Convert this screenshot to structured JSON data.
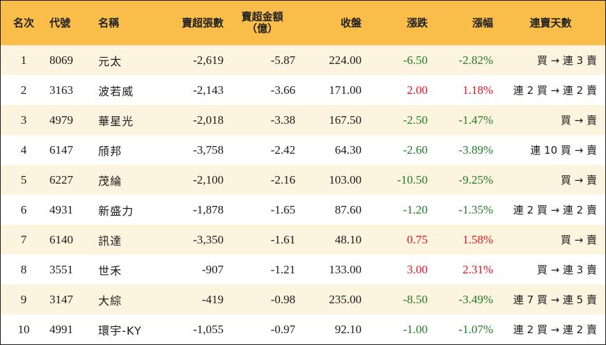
{
  "headers": {
    "rank": "名次",
    "code": "代號",
    "name": "名稱",
    "net_sell_lots": "賣超張數",
    "net_sell_amount_line1": "賣超金額",
    "net_sell_amount_line2": "（億）",
    "close": "收盤",
    "change": "漲跌",
    "change_pct": "漲幅",
    "streak": "連賣天數"
  },
  "colors": {
    "header_bg": "#f9bd4a",
    "odd_row_bg": "#fdf4df",
    "up": "#e8101e",
    "down": "#1c7d24"
  },
  "rows": [
    {
      "rank": "1",
      "code": "8069",
      "name": "元太",
      "lots": "-2,619",
      "amount": "-5.87",
      "close": "224.00",
      "change": "-6.50",
      "pct": "-2.82%",
      "dir": "down",
      "streak": "買 → 連 3 賣"
    },
    {
      "rank": "2",
      "code": "3163",
      "name": "波若威",
      "lots": "-2,143",
      "amount": "-3.66",
      "close": "171.00",
      "change": "2.00",
      "pct": "1.18%",
      "dir": "up",
      "streak": "連 2 買 → 連 2 賣"
    },
    {
      "rank": "3",
      "code": "4979",
      "name": "華星光",
      "lots": "-2,018",
      "amount": "-3.38",
      "close": "167.50",
      "change": "-2.50",
      "pct": "-1.47%",
      "dir": "down",
      "streak": "買 → 賣"
    },
    {
      "rank": "4",
      "code": "6147",
      "name": "頎邦",
      "lots": "-3,758",
      "amount": "-2.42",
      "close": "64.30",
      "change": "-2.60",
      "pct": "-3.89%",
      "dir": "down",
      "streak": "連 10 買 → 賣"
    },
    {
      "rank": "5",
      "code": "6227",
      "name": "茂綸",
      "lots": "-2,100",
      "amount": "-2.16",
      "close": "103.00",
      "change": "-10.50",
      "pct": "-9.25%",
      "dir": "down",
      "streak": "買 → 賣"
    },
    {
      "rank": "6",
      "code": "4931",
      "name": "新盛力",
      "lots": "-1,878",
      "amount": "-1.65",
      "close": "87.60",
      "change": "-1.20",
      "pct": "-1.35%",
      "dir": "down",
      "streak": "連 2 買 → 連 2 賣"
    },
    {
      "rank": "7",
      "code": "6140",
      "name": "訊達",
      "lots": "-3,350",
      "amount": "-1.61",
      "close": "48.10",
      "change": "0.75",
      "pct": "1.58%",
      "dir": "up",
      "streak": "買 → 賣"
    },
    {
      "rank": "8",
      "code": "3551",
      "name": "世禾",
      "lots": "-907",
      "amount": "-1.21",
      "close": "133.00",
      "change": "3.00",
      "pct": "2.31%",
      "dir": "up",
      "streak": "買 → 連 3 賣"
    },
    {
      "rank": "9",
      "code": "3147",
      "name": "大綜",
      "lots": "-419",
      "amount": "-0.98",
      "close": "235.00",
      "change": "-8.50",
      "pct": "-3.49%",
      "dir": "down",
      "streak": "連 7 買 → 連 5 賣"
    },
    {
      "rank": "10",
      "code": "4991",
      "name": "環宇-KY",
      "lots": "-1,055",
      "amount": "-0.97",
      "close": "92.10",
      "change": "-1.00",
      "pct": "-1.07%",
      "dir": "down",
      "streak": "連 2 買 → 連 2 賣"
    }
  ]
}
